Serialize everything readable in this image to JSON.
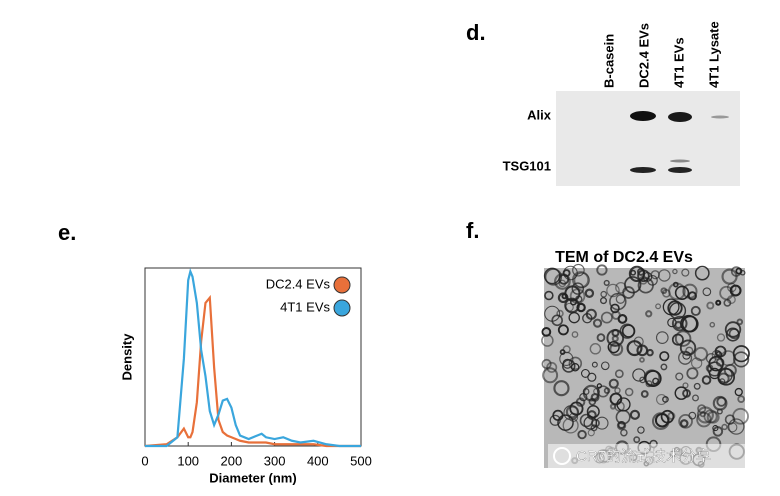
{
  "panels": {
    "d": {
      "label": "d.",
      "lanes": [
        "B-casein",
        "DC2.4 EVs",
        "4T1 EVs",
        "4T1 Lysate"
      ],
      "rows": [
        "Alix",
        "TSG101"
      ]
    },
    "e": {
      "label": "e."
    },
    "f": {
      "label": "f.",
      "title": "TEM of DC2.4 EVs",
      "watermark": "CR7的流式技术分享"
    }
  },
  "chart_data": {
    "type": "line",
    "xlabel": "Diameter (nm)",
    "ylabel": "Density",
    "x": [
      0,
      50,
      75,
      90,
      100,
      105,
      110,
      120,
      130,
      140,
      150,
      160,
      170,
      180,
      190,
      200,
      210,
      220,
      240,
      260,
      270,
      280,
      300,
      320,
      340,
      360,
      390,
      420,
      450,
      500
    ],
    "series": [
      {
        "name": "DC2.4 EVs",
        "color": "#e8703a",
        "values": [
          0,
          0.01,
          0.05,
          0.1,
          0.05,
          0.05,
          0.08,
          0.25,
          0.6,
          0.82,
          0.85,
          0.45,
          0.15,
          0.08,
          0.06,
          0.05,
          0.04,
          0.03,
          0.02,
          0.02,
          0.02,
          0.02,
          0.01,
          0.01,
          0.01,
          0.01,
          0.01,
          0,
          0,
          0
        ]
      },
      {
        "name": "4T1 EVs",
        "color": "#3aa6dd",
        "values": [
          0,
          0,
          0.05,
          0.5,
          0.95,
          1.0,
          0.97,
          0.82,
          0.55,
          0.4,
          0.2,
          0.12,
          0.18,
          0.26,
          0.27,
          0.22,
          0.12,
          0.06,
          0.04,
          0.06,
          0.07,
          0.05,
          0.04,
          0.05,
          0.03,
          0.02,
          0.03,
          0.01,
          0,
          0
        ]
      }
    ],
    "xlim": [
      0,
      500
    ],
    "xticks": [
      0,
      100,
      200,
      300,
      400,
      500
    ],
    "ylim": [
      0,
      1.02
    ],
    "legend": "upper right"
  }
}
